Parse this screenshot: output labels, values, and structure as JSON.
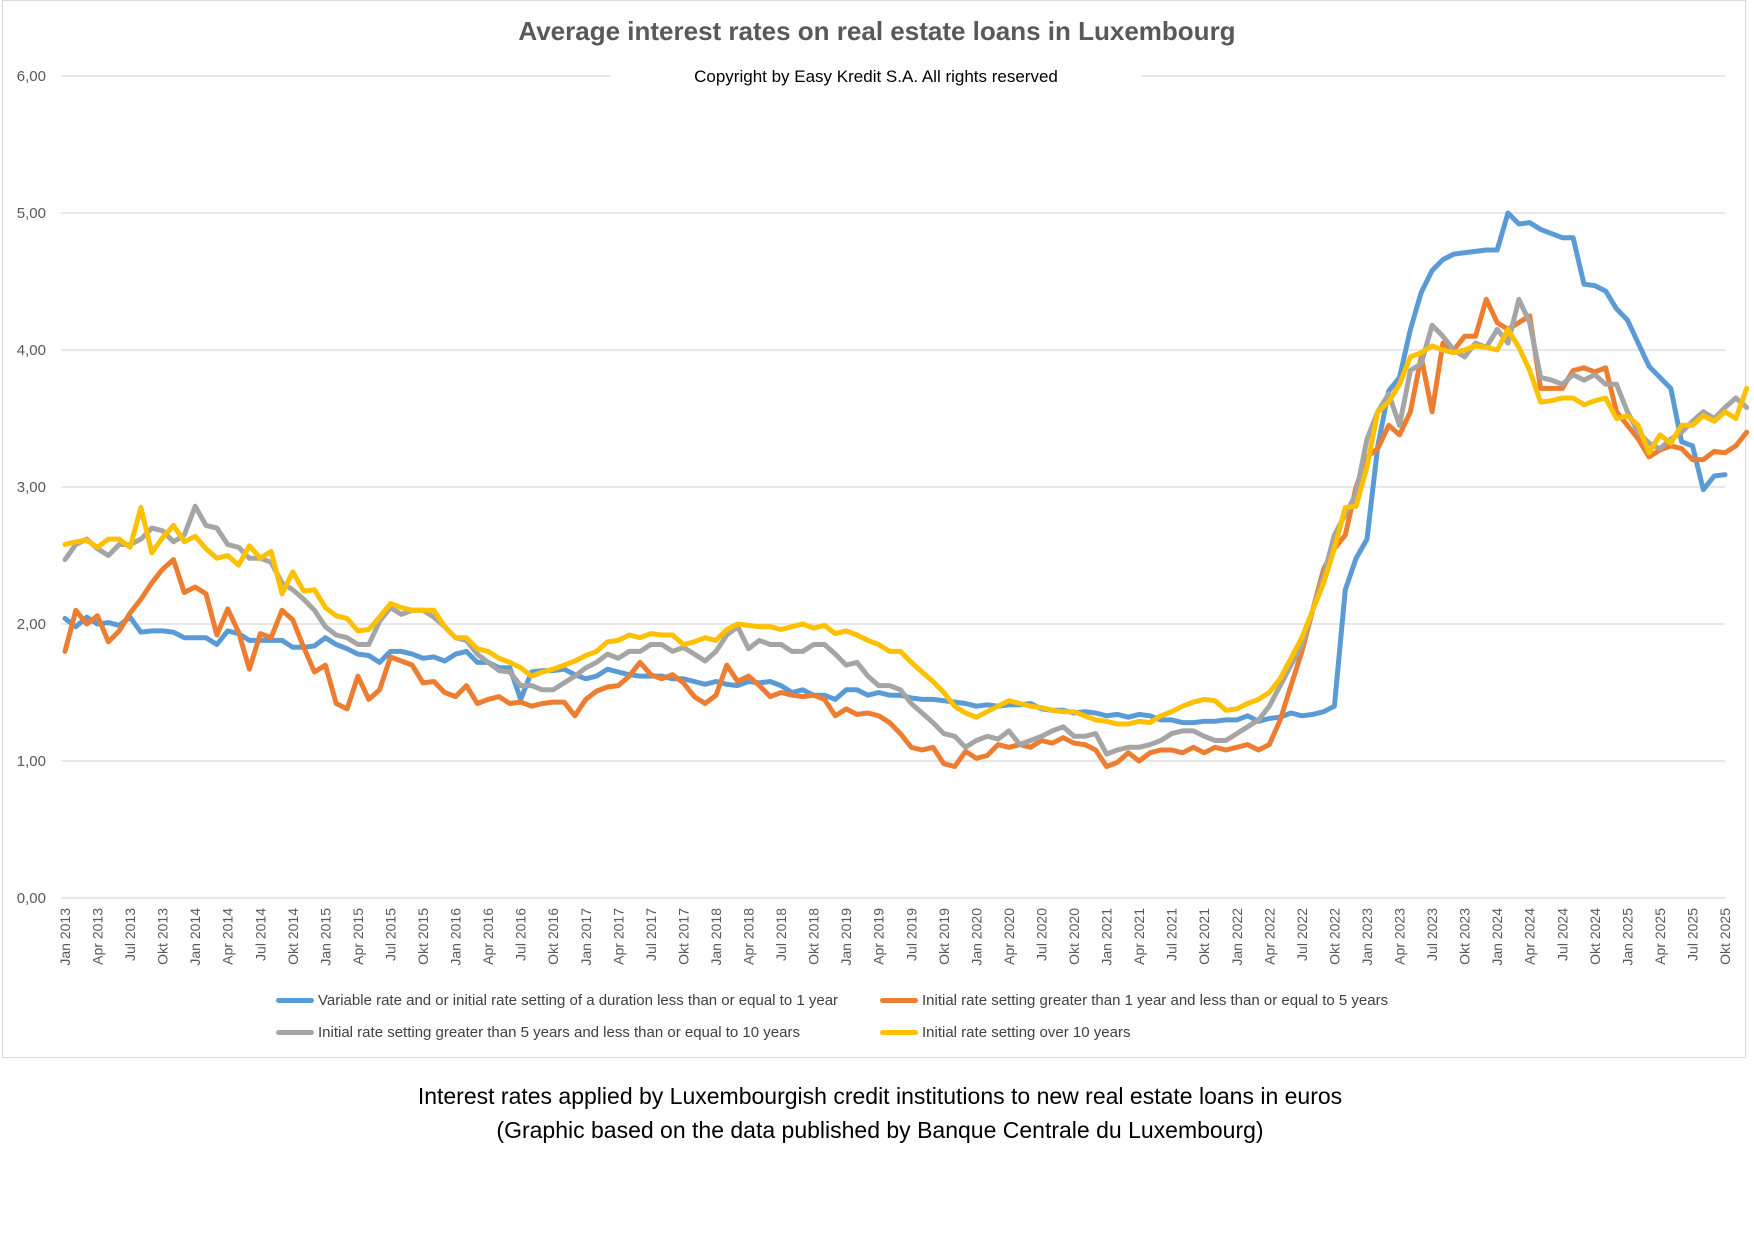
{
  "chart_data": {
    "type": "line",
    "title": "Average interest rates on real estate loans in Luxembourg",
    "subtitle": "Copyright by Easy Kredit S.A. All rights reserved",
    "xlabel": "",
    "ylabel": "",
    "ylim": [
      0,
      6
    ],
    "y_ticks": [
      "0,00",
      "1,00",
      "2,00",
      "3,00",
      "4,00",
      "5,00",
      "6,00"
    ],
    "grid": true,
    "legend_position": "bottom",
    "x_tick_labels": [
      "Jan 2013",
      "Apr 2013",
      "Jul 2013",
      "Okt 2013",
      "Jan 2014",
      "Apr 2014",
      "Jul 2014",
      "Okt 2014",
      "Jan 2015",
      "Apr 2015",
      "Jul 2015",
      "Okt 2015",
      "Jan 2016",
      "Apr 2016",
      "Jul 2016",
      "Okt 2016",
      "Jan 2017",
      "Apr 2017",
      "Jul 2017",
      "Okt 2017",
      "Jan 2018",
      "Apr 2018",
      "Jul 2018",
      "Okt 2018",
      "Jan 2019",
      "Apr 2019",
      "Jul 2019",
      "Okt 2019",
      "Jan 2020",
      "Apr 2020",
      "Jul 2020",
      "Okt 2020",
      "Jan 2021",
      "Apr 2021",
      "Jul 2021",
      "Okt 2021",
      "Jan 2022",
      "Apr 2022",
      "Jul 2022",
      "Okt 2022",
      "Jan 2023",
      "Apr 2023",
      "Jul 2023",
      "Okt 2023",
      "Jan 2024",
      "Apr 2024",
      "Jul 2024",
      "Okt 2024",
      "Jan 2025",
      "Apr 2025",
      "Jul 2025",
      "Okt 2025"
    ],
    "x_frequency": "monthly",
    "series": [
      {
        "name": "Variable rate and or initial rate setting of a duration less than or equal to 1 year",
        "color": "#5B9BD5",
        "values": [
          2.04,
          1.98,
          2.05,
          2.0,
          2.01,
          1.99,
          2.05,
          1.94,
          1.95,
          1.95,
          1.94,
          1.9,
          1.9,
          1.9,
          1.85,
          1.95,
          1.93,
          1.88,
          1.88,
          1.88,
          1.88,
          1.83,
          1.83,
          1.84,
          1.9,
          1.85,
          1.82,
          1.78,
          1.77,
          1.72,
          1.8,
          1.8,
          1.78,
          1.75,
          1.76,
          1.73,
          1.78,
          1.8,
          1.72,
          1.72,
          1.68,
          1.68,
          1.45,
          1.65,
          1.66,
          1.66,
          1.67,
          1.63,
          1.6,
          1.62,
          1.67,
          1.65,
          1.63,
          1.62,
          1.62,
          1.62,
          1.6,
          1.6,
          1.58,
          1.56,
          1.58,
          1.56,
          1.55,
          1.58,
          1.57,
          1.58,
          1.55,
          1.5,
          1.52,
          1.48,
          1.48,
          1.45,
          1.52,
          1.52,
          1.48,
          1.5,
          1.48,
          1.48,
          1.46,
          1.45,
          1.45,
          1.44,
          1.43,
          1.42,
          1.4,
          1.41,
          1.4,
          1.41,
          1.41,
          1.42,
          1.38,
          1.37,
          1.37,
          1.35,
          1.36,
          1.35,
          1.33,
          1.34,
          1.32,
          1.34,
          1.33,
          1.3,
          1.3,
          1.28,
          1.28,
          1.29,
          1.29,
          1.3,
          1.3,
          1.33,
          1.29,
          1.31,
          1.32,
          1.35,
          1.33,
          1.34,
          1.36,
          1.4,
          2.25,
          2.48,
          2.62,
          3.3,
          3.7,
          3.8,
          4.15,
          4.42,
          4.58,
          4.66,
          4.7,
          4.71,
          4.72,
          4.73,
          4.73,
          5.0,
          4.92,
          4.93,
          4.88,
          4.85,
          4.82,
          4.82,
          4.48,
          4.47,
          4.43,
          4.3,
          4.22,
          4.05,
          3.88,
          3.8,
          3.72,
          3.33,
          3.3,
          2.98,
          3.08,
          3.09
        ]
      },
      {
        "name": "Initial rate setting greater than 1 year and less than or equal to 5 years",
        "color": "#ED7D31",
        "values": [
          1.8,
          2.1,
          2.0,
          2.06,
          1.87,
          1.95,
          2.08,
          2.18,
          2.3,
          2.4,
          2.47,
          2.23,
          2.27,
          2.22,
          1.92,
          2.11,
          1.94,
          1.67,
          1.93,
          1.9,
          2.1,
          2.03,
          1.83,
          1.65,
          1.7,
          1.42,
          1.38,
          1.62,
          1.45,
          1.52,
          1.76,
          1.73,
          1.7,
          1.57,
          1.58,
          1.5,
          1.47,
          1.55,
          1.42,
          1.45,
          1.47,
          1.42,
          1.43,
          1.4,
          1.42,
          1.43,
          1.43,
          1.33,
          1.45,
          1.51,
          1.54,
          1.55,
          1.62,
          1.72,
          1.63,
          1.6,
          1.63,
          1.57,
          1.47,
          1.42,
          1.48,
          1.7,
          1.58,
          1.62,
          1.55,
          1.47,
          1.5,
          1.48,
          1.47,
          1.48,
          1.45,
          1.33,
          1.38,
          1.34,
          1.35,
          1.33,
          1.28,
          1.2,
          1.1,
          1.08,
          1.1,
          0.98,
          0.96,
          1.07,
          1.02,
          1.04,
          1.12,
          1.1,
          1.12,
          1.1,
          1.15,
          1.13,
          1.17,
          1.13,
          1.12,
          1.08,
          0.96,
          0.99,
          1.06,
          1.0,
          1.06,
          1.08,
          1.08,
          1.06,
          1.1,
          1.06,
          1.1,
          1.08,
          1.1,
          1.12,
          1.08,
          1.12,
          1.3,
          1.55,
          1.8,
          2.1,
          2.4,
          2.55,
          2.65,
          3.0,
          3.22,
          3.28,
          3.45,
          3.38,
          3.55,
          3.95,
          3.55,
          4.05,
          4.0,
          4.1,
          4.1,
          4.37,
          4.2,
          4.15,
          4.2,
          4.25,
          3.72,
          3.72,
          3.72,
          3.85,
          3.87,
          3.84,
          3.87,
          3.55,
          3.45,
          3.35,
          3.22,
          3.27,
          3.3,
          3.28,
          3.2,
          3.2,
          3.26,
          3.25,
          3.3,
          3.4
        ]
      },
      {
        "name": "Initial rate setting greater than 5 years and less than or equal to 10 years",
        "color": "#A5A5A5",
        "values": [
          2.47,
          2.58,
          2.62,
          2.55,
          2.5,
          2.58,
          2.58,
          2.62,
          2.7,
          2.68,
          2.6,
          2.65,
          2.86,
          2.72,
          2.7,
          2.58,
          2.56,
          2.48,
          2.48,
          2.45,
          2.3,
          2.25,
          2.18,
          2.1,
          1.98,
          1.92,
          1.9,
          1.85,
          1.85,
          2.02,
          2.12,
          2.07,
          2.1,
          2.1,
          2.05,
          1.98,
          1.9,
          1.88,
          1.78,
          1.72,
          1.66,
          1.65,
          1.55,
          1.55,
          1.52,
          1.52,
          1.57,
          1.62,
          1.68,
          1.72,
          1.78,
          1.75,
          1.8,
          1.8,
          1.85,
          1.85,
          1.8,
          1.83,
          1.78,
          1.73,
          1.8,
          1.92,
          1.98,
          1.82,
          1.88,
          1.85,
          1.85,
          1.8,
          1.8,
          1.85,
          1.85,
          1.78,
          1.7,
          1.72,
          1.62,
          1.55,
          1.55,
          1.52,
          1.42,
          1.35,
          1.28,
          1.2,
          1.18,
          1.1,
          1.15,
          1.18,
          1.16,
          1.22,
          1.12,
          1.15,
          1.18,
          1.22,
          1.25,
          1.18,
          1.18,
          1.2,
          1.05,
          1.08,
          1.1,
          1.1,
          1.12,
          1.15,
          1.2,
          1.22,
          1.22,
          1.18,
          1.15,
          1.15,
          1.2,
          1.25,
          1.3,
          1.4,
          1.55,
          1.7,
          1.85,
          2.1,
          2.35,
          2.65,
          2.8,
          2.95,
          3.35,
          3.55,
          3.68,
          3.45,
          3.85,
          3.9,
          4.18,
          4.1,
          4.0,
          3.95,
          4.05,
          4.02,
          4.15,
          4.05,
          4.37,
          4.2,
          3.8,
          3.78,
          3.75,
          3.82,
          3.78,
          3.82,
          3.75,
          3.75,
          3.55,
          3.4,
          3.32,
          3.28,
          3.35,
          3.4,
          3.48,
          3.55,
          3.5,
          3.58,
          3.65,
          3.58
        ]
      },
      {
        "name": "Initial rate setting over 10 years",
        "color": "#FFC000",
        "values": [
          2.58,
          2.6,
          2.61,
          2.56,
          2.62,
          2.62,
          2.56,
          2.85,
          2.52,
          2.63,
          2.72,
          2.6,
          2.64,
          2.55,
          2.48,
          2.5,
          2.43,
          2.57,
          2.48,
          2.53,
          2.22,
          2.38,
          2.24,
          2.25,
          2.12,
          2.06,
          2.04,
          1.95,
          1.96,
          2.05,
          2.15,
          2.12,
          2.1,
          2.1,
          2.1,
          1.98,
          1.9,
          1.9,
          1.82,
          1.8,
          1.75,
          1.72,
          1.68,
          1.62,
          1.65,
          1.67,
          1.7,
          1.73,
          1.77,
          1.8,
          1.87,
          1.88,
          1.92,
          1.9,
          1.93,
          1.92,
          1.92,
          1.85,
          1.87,
          1.9,
          1.88,
          1.96,
          2.0,
          1.99,
          1.98,
          1.98,
          1.96,
          1.98,
          2.0,
          1.97,
          1.99,
          1.93,
          1.95,
          1.92,
          1.88,
          1.85,
          1.8,
          1.8,
          1.72,
          1.65,
          1.58,
          1.5,
          1.4,
          1.35,
          1.32,
          1.36,
          1.4,
          1.44,
          1.42,
          1.4,
          1.39,
          1.37,
          1.36,
          1.36,
          1.33,
          1.3,
          1.29,
          1.27,
          1.27,
          1.29,
          1.28,
          1.33,
          1.36,
          1.4,
          1.43,
          1.45,
          1.44,
          1.37,
          1.38,
          1.42,
          1.45,
          1.5,
          1.6,
          1.75,
          1.9,
          2.1,
          2.3,
          2.55,
          2.85,
          2.86,
          3.15,
          3.55,
          3.62,
          3.75,
          3.95,
          3.98,
          4.03,
          4.0,
          3.98,
          4.0,
          4.03,
          4.02,
          4.0,
          4.15,
          4.02,
          3.85,
          3.62,
          3.63,
          3.65,
          3.65,
          3.6,
          3.63,
          3.65,
          3.5,
          3.52,
          3.45,
          3.25,
          3.38,
          3.32,
          3.45,
          3.45,
          3.52,
          3.48,
          3.55,
          3.5,
          3.72
        ]
      }
    ]
  },
  "captions": {
    "line1": "Interest rates applied by Luxembourgish credit institutions to new real estate loans in euros",
    "line2": "(Graphic based on the data published by Banque Centrale du Luxembourg)"
  }
}
